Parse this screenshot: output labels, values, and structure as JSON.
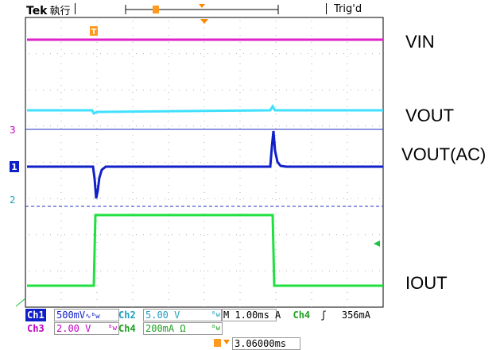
{
  "header": {
    "brand": "Tek",
    "mode": "執行",
    "trigger_status": "Trig'd"
  },
  "channel_markers": {
    "ch3": "3",
    "ch1": "1",
    "ch2": "2",
    "trigger_pos": "T"
  },
  "signal_labels": {
    "vin": "VIN",
    "vout": "VOUT",
    "vout_ac": "VOUT(AC)",
    "iout": "IOUT"
  },
  "colors": {
    "vin": "#e020c8",
    "vout": "#40e0ff",
    "vout_ac": "#1020c8",
    "iout": "#20e040",
    "ch2_dashed": "#2030c0",
    "grid": "#b0b0b0",
    "trigger": "#ff8a00"
  },
  "readouts": {
    "ch1": {
      "name": "Ch1",
      "scale": "500mV",
      "coupling": "∿ᴮw"
    },
    "ch2": {
      "name": "Ch2",
      "scale": "5.00 V",
      "coupling": "ᴮw"
    },
    "ch3": {
      "name": "Ch3",
      "scale": "2.00 V",
      "coupling": "ᴮw"
    },
    "ch4": {
      "name": "Ch4",
      "scale": "200mA Ω",
      "coupling": "ᴮw"
    },
    "timebase": "M 1.00ms",
    "trigger": {
      "label": "A",
      "source": "Ch4",
      "slope": "ʃ",
      "level": "356mA"
    },
    "trigger_delay": "3.06000ms"
  }
}
